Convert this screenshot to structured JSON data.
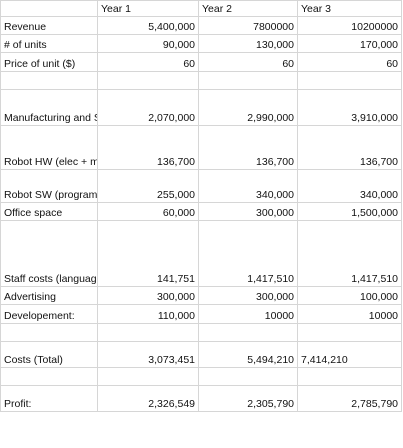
{
  "header": {
    "y1": "Year 1",
    "y2": "Year 2",
    "y3": "Year 3"
  },
  "rows": {
    "revenue": {
      "label": "Revenue",
      "y1": "5,400,000",
      "y2": "7800000",
      "y3": "10200000"
    },
    "units": {
      "label": "# of units",
      "y1": "90,000",
      "y2": "130,000",
      "y3": "170,000"
    },
    "price": {
      "label": "Price of unit ($)",
      "y1": "60",
      "y2": "60",
      "y3": "60"
    },
    "manufacturing": {
      "label": "Manufacturing and Shipping",
      "y1": "2,070,000",
      "y2": "2,990,000",
      "y3": "3,910,000"
    },
    "robot_hw": {
      "label": "Robot HW (elec + mech engineers)",
      "y1": "136,700",
      "y2": "136,700",
      "y3": "136,700"
    },
    "robot_sw": {
      "label": "Robot SW (programmers)",
      "y1": "255,000",
      "y2": "340,000",
      "y3": "340,000"
    },
    "office": {
      "label": "Office space",
      "y1": "60,000",
      "y2": "300,000",
      "y3": "1,500,000"
    },
    "staff": {
      "label": "Staff costs (language specialist, designer)",
      "y1": "141,751",
      "y2": "1,417,510",
      "y3": "1,417,510"
    },
    "advertising": {
      "label": "Advertising",
      "y1": "300,000",
      "y2": "300,000",
      "y3": "100,000"
    },
    "development": {
      "label": "Developement:",
      "y1": "110,000",
      "y2": "10000",
      "y3": "10000"
    },
    "costs_total": {
      "label": "Costs (Total)",
      "y1": "3,073,451",
      "y2": "5,494,210",
      "y3": "7,414,210"
    },
    "profit": {
      "label": "Profit:",
      "y1": "2,326,549",
      "y2": "2,305,790",
      "y3": "2,785,790"
    }
  }
}
